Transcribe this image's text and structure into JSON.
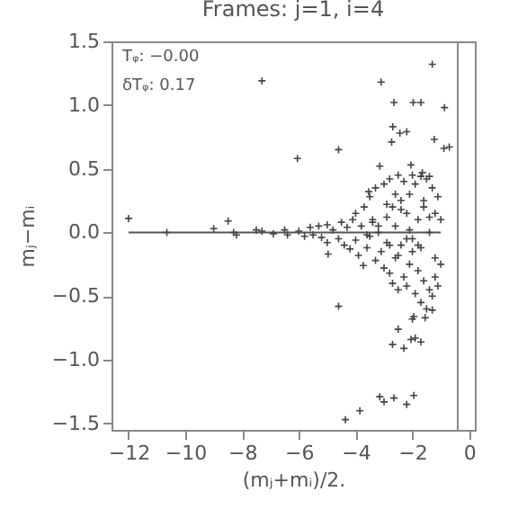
{
  "chart_data": {
    "type": "scatter",
    "title": "Frames: j=1, i=4",
    "xlabel": "(mⱼ+mᵢ)/2.",
    "ylabel": "mⱼ−mᵢ",
    "annotations": [
      "Tᵩ: −0.00",
      "δTᵩ:  0.17"
    ],
    "xlim": [
      -12.6,
      0.2
    ],
    "ylim": [
      -1.55,
      1.5
    ],
    "xticks": [
      {
        "value": -12,
        "label": "−12"
      },
      {
        "value": -10,
        "label": "−10"
      },
      {
        "value": -8,
        "label": "−8"
      },
      {
        "value": -6,
        "label": "−6"
      },
      {
        "value": -4,
        "label": "−4"
      },
      {
        "value": -2,
        "label": "−2"
      },
      0
    ],
    "yticks": [
      {
        "value": -1.5,
        "label": "−1.5"
      },
      {
        "value": -1,
        "label": "−1.0"
      },
      {
        "value": -0.5,
        "label": "−0.5"
      },
      {
        "value": 0,
        "label": "0.0"
      },
      {
        "value": 0.5,
        "label": "0.5"
      },
      {
        "value": 1,
        "label": "1.0"
      },
      {
        "value": 1.5,
        "label": "1.5"
      }
    ],
    "ref_lines": [
      {
        "axis": "x",
        "value": -0.4,
        "color": "#888888"
      }
    ],
    "marker": "cross",
    "series": [
      {
        "type": "line",
        "marker": "none",
        "color": "#555555",
        "x": [
          -12,
          -1
        ],
        "values": [
          0,
          0
        ]
      },
      {
        "color": "#444444",
        "x": [
          -12.0,
          -7.3,
          -6.05,
          -4.6,
          -3.1,
          -1.3,
          -2.65,
          -1.97,
          -1.7,
          -0.87,
          -2.69,
          -2.44,
          -2.2,
          -2.73,
          -1.23,
          -0.89,
          -0.7,
          -3.15,
          -2.05,
          -1.65,
          -1.4,
          -3.54,
          -8.49,
          -10.65,
          -4.6,
          -4.36,
          -3.85,
          -3.15,
          -3.0,
          -2.65,
          -2.2,
          -1.95,
          -2.5,
          -2.7,
          -2.3,
          -2.05,
          -1.9,
          -1.7,
          -2.0,
          -1.95,
          -1.55,
          -1.3,
          -9.0,
          -8.3,
          -8.2,
          -7.5,
          -7.3,
          -6.9,
          -6.5,
          -6.4,
          -6.0,
          -5.8,
          -5.6,
          -5.5,
          -5.3,
          -5.2,
          -5.0,
          -5.0,
          -4.97,
          -3.73,
          -4.8,
          -4.6,
          -4.5,
          -4.4,
          -4.3,
          -4.2,
          -4.1,
          -4.0,
          -4.0,
          -3.9,
          -3.8,
          -3.7,
          -3.6,
          -3.5,
          -3.5,
          -3.4,
          -3.3,
          -3.3,
          -3.2,
          -3.1,
          -3.0,
          -3.0,
          -2.9,
          -2.9,
          -2.8,
          -2.8,
          -2.7,
          -2.7,
          -2.6,
          -2.6,
          -2.5,
          -2.5,
          -2.4,
          -2.4,
          -2.3,
          -2.3,
          -2.2,
          -2.2,
          -2.1,
          -2.1,
          -2.0,
          -2.0,
          -1.9,
          -1.9,
          -1.8,
          -1.8,
          -1.7,
          -1.7,
          -1.6,
          -1.6,
          -1.5,
          -1.5,
          -1.4,
          -1.4,
          -1.3,
          -1.3,
          -1.2,
          -1.2,
          -1.1,
          -1.1,
          -1.0,
          -1.0,
          -3.6,
          -3.2,
          -2.8,
          -2.4,
          -2.0,
          -1.6,
          -1.2,
          -2.6,
          -2.2,
          -1.8,
          -1.4,
          -3.4,
          -2.9,
          -2.5,
          -2.1,
          -1.7
        ],
        "values": [
          0.11,
          1.19,
          0.58,
          0.65,
          1.18,
          1.32,
          1.02,
          1.02,
          1.02,
          0.98,
          0.83,
          0.78,
          0.79,
          0.71,
          0.73,
          0.66,
          0.67,
          0.52,
          0.53,
          0.47,
          0.44,
          0.32,
          0.09,
          0.0,
          -0.58,
          -1.47,
          -1.4,
          -1.29,
          -1.33,
          -1.3,
          -1.35,
          -1.28,
          -0.76,
          -0.88,
          -0.91,
          -0.84,
          -0.83,
          -0.86,
          -0.68,
          -0.66,
          -0.67,
          -0.61,
          0.03,
          0.0,
          -0.02,
          0.02,
          0.01,
          -0.01,
          0.02,
          -0.02,
          0.01,
          -0.03,
          0.04,
          -0.02,
          0.05,
          -0.04,
          0.06,
          -0.08,
          -0.17,
          -0.26,
          0.02,
          -0.05,
          0.08,
          -0.1,
          0.04,
          -0.13,
          0.1,
          0.15,
          -0.06,
          -0.18,
          0.05,
          0.2,
          -0.12,
          0.28,
          -0.03,
          0.1,
          -0.22,
          0.35,
          0.0,
          -0.15,
          0.38,
          -0.28,
          0.12,
          -0.08,
          0.42,
          -0.32,
          0.2,
          -0.4,
          0.05,
          -0.2,
          0.45,
          -0.45,
          0.25,
          -0.1,
          0.4,
          -0.35,
          0.15,
          -0.42,
          0.3,
          -0.25,
          0.45,
          -0.05,
          0.38,
          -0.48,
          0.1,
          -0.3,
          0.44,
          -0.55,
          0.2,
          -0.38,
          0.42,
          -0.6,
          0.0,
          -0.45,
          0.35,
          -0.5,
          0.15,
          -0.35,
          0.28,
          -0.42,
          0.1,
          -0.25,
          -0.02,
          0.05,
          -0.1,
          0.18,
          -0.15,
          0.25,
          -0.2,
          0.3,
          -0.05,
          -0.1,
          0.12,
          0.08,
          0.22,
          -0.18,
          0.02,
          -0.12
        ]
      }
    ]
  }
}
